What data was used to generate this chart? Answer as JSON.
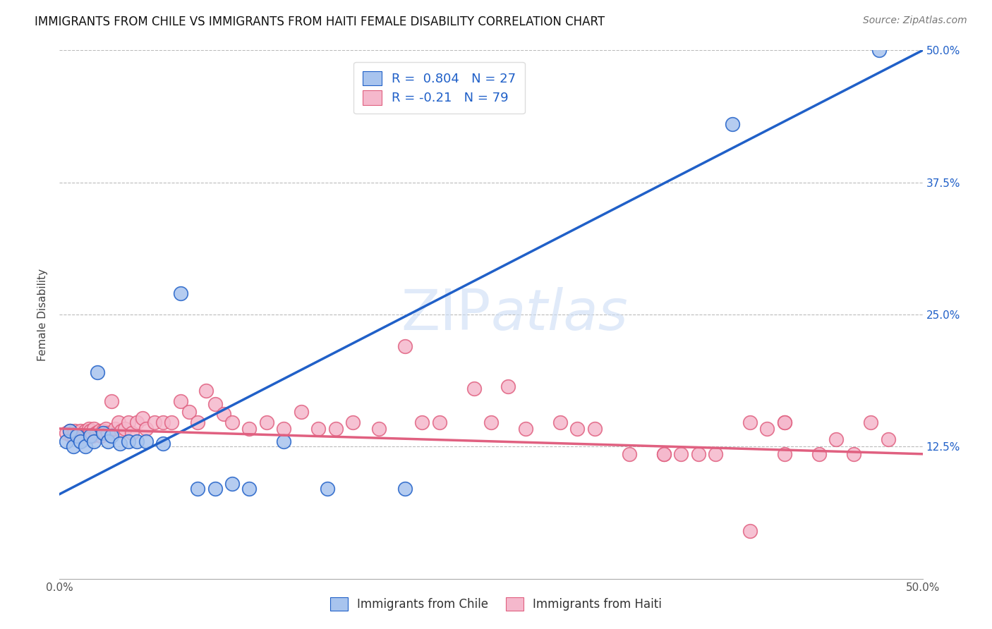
{
  "title": "IMMIGRANTS FROM CHILE VS IMMIGRANTS FROM HAITI FEMALE DISABILITY CORRELATION CHART",
  "source": "Source: ZipAtlas.com",
  "ylabel_label": "Female Disability",
  "xlim": [
    0.0,
    0.5
  ],
  "ylim": [
    0.0,
    0.5
  ],
  "chile_color": "#a8c4ee",
  "haiti_color": "#f5b8cc",
  "chile_line_color": "#2060c8",
  "haiti_line_color": "#e06080",
  "chile_R": 0.804,
  "chile_N": 27,
  "haiti_R": -0.21,
  "haiti_N": 79,
  "chile_scatter_x": [
    0.004,
    0.006,
    0.008,
    0.01,
    0.012,
    0.015,
    0.018,
    0.02,
    0.022,
    0.025,
    0.028,
    0.03,
    0.035,
    0.04,
    0.045,
    0.05,
    0.06,
    0.07,
    0.08,
    0.09,
    0.1,
    0.11,
    0.13,
    0.155,
    0.2,
    0.39,
    0.475
  ],
  "chile_scatter_y": [
    0.13,
    0.14,
    0.125,
    0.135,
    0.13,
    0.125,
    0.135,
    0.13,
    0.195,
    0.138,
    0.13,
    0.135,
    0.128,
    0.13,
    0.13,
    0.13,
    0.128,
    0.27,
    0.085,
    0.085,
    0.09,
    0.085,
    0.13,
    0.085,
    0.085,
    0.43,
    0.5
  ],
  "haiti_scatter_x": [
    0.004,
    0.006,
    0.007,
    0.008,
    0.009,
    0.01,
    0.011,
    0.012,
    0.013,
    0.014,
    0.015,
    0.016,
    0.017,
    0.018,
    0.019,
    0.02,
    0.021,
    0.022,
    0.023,
    0.024,
    0.025,
    0.026,
    0.027,
    0.028,
    0.03,
    0.032,
    0.034,
    0.036,
    0.038,
    0.04,
    0.042,
    0.045,
    0.048,
    0.05,
    0.055,
    0.06,
    0.065,
    0.07,
    0.075,
    0.08,
    0.085,
    0.09,
    0.095,
    0.1,
    0.11,
    0.12,
    0.13,
    0.14,
    0.15,
    0.16,
    0.17,
    0.185,
    0.2,
    0.21,
    0.22,
    0.24,
    0.25,
    0.26,
    0.27,
    0.29,
    0.3,
    0.31,
    0.33,
    0.35,
    0.36,
    0.38,
    0.4,
    0.41,
    0.42,
    0.44,
    0.46,
    0.48,
    0.35,
    0.37,
    0.4,
    0.42,
    0.45,
    0.47,
    0.42
  ],
  "haiti_scatter_y": [
    0.138,
    0.14,
    0.135,
    0.135,
    0.14,
    0.138,
    0.135,
    0.14,
    0.135,
    0.138,
    0.14,
    0.138,
    0.142,
    0.14,
    0.135,
    0.142,
    0.138,
    0.138,
    0.14,
    0.135,
    0.14,
    0.138,
    0.142,
    0.138,
    0.168,
    0.142,
    0.148,
    0.14,
    0.142,
    0.148,
    0.138,
    0.148,
    0.152,
    0.142,
    0.148,
    0.148,
    0.148,
    0.168,
    0.158,
    0.148,
    0.178,
    0.165,
    0.156,
    0.148,
    0.142,
    0.148,
    0.142,
    0.158,
    0.142,
    0.142,
    0.148,
    0.142,
    0.22,
    0.148,
    0.148,
    0.18,
    0.148,
    0.182,
    0.142,
    0.148,
    0.142,
    0.142,
    0.118,
    0.118,
    0.118,
    0.118,
    0.148,
    0.142,
    0.148,
    0.118,
    0.118,
    0.132,
    0.118,
    0.118,
    0.045,
    0.118,
    0.132,
    0.148,
    0.148
  ]
}
